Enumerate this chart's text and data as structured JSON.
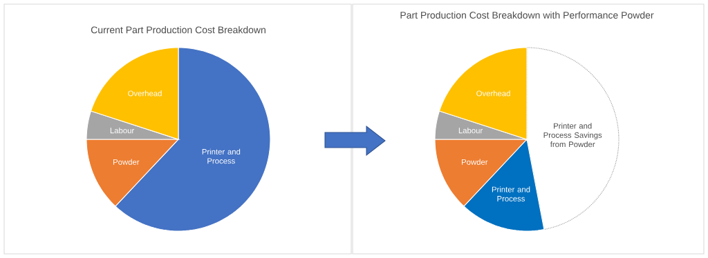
{
  "chart_data": [
    {
      "type": "pie",
      "title": "Current Part Production Cost Breakdown",
      "categories": [
        "Printer and Process",
        "Powder",
        "Labour",
        "Overhead"
      ],
      "values": [
        62,
        13,
        5,
        20
      ],
      "colors": [
        "#4472c4",
        "#ed7d31",
        "#a5a5a5",
        "#ffc000"
      ]
    },
    {
      "type": "pie",
      "title": "Part Production Cost Breakdown with Performance Powder",
      "categories": [
        "Printer and Process Savings from Powder",
        "Printer and Process",
        "Powder",
        "Labour",
        "Overhead"
      ],
      "values": [
        47,
        15,
        13,
        5,
        20
      ],
      "colors": [
        "#ffffff",
        "#0070c0",
        "#ed7d31",
        "#a5a5a5",
        "#ffc000"
      ]
    }
  ]
}
